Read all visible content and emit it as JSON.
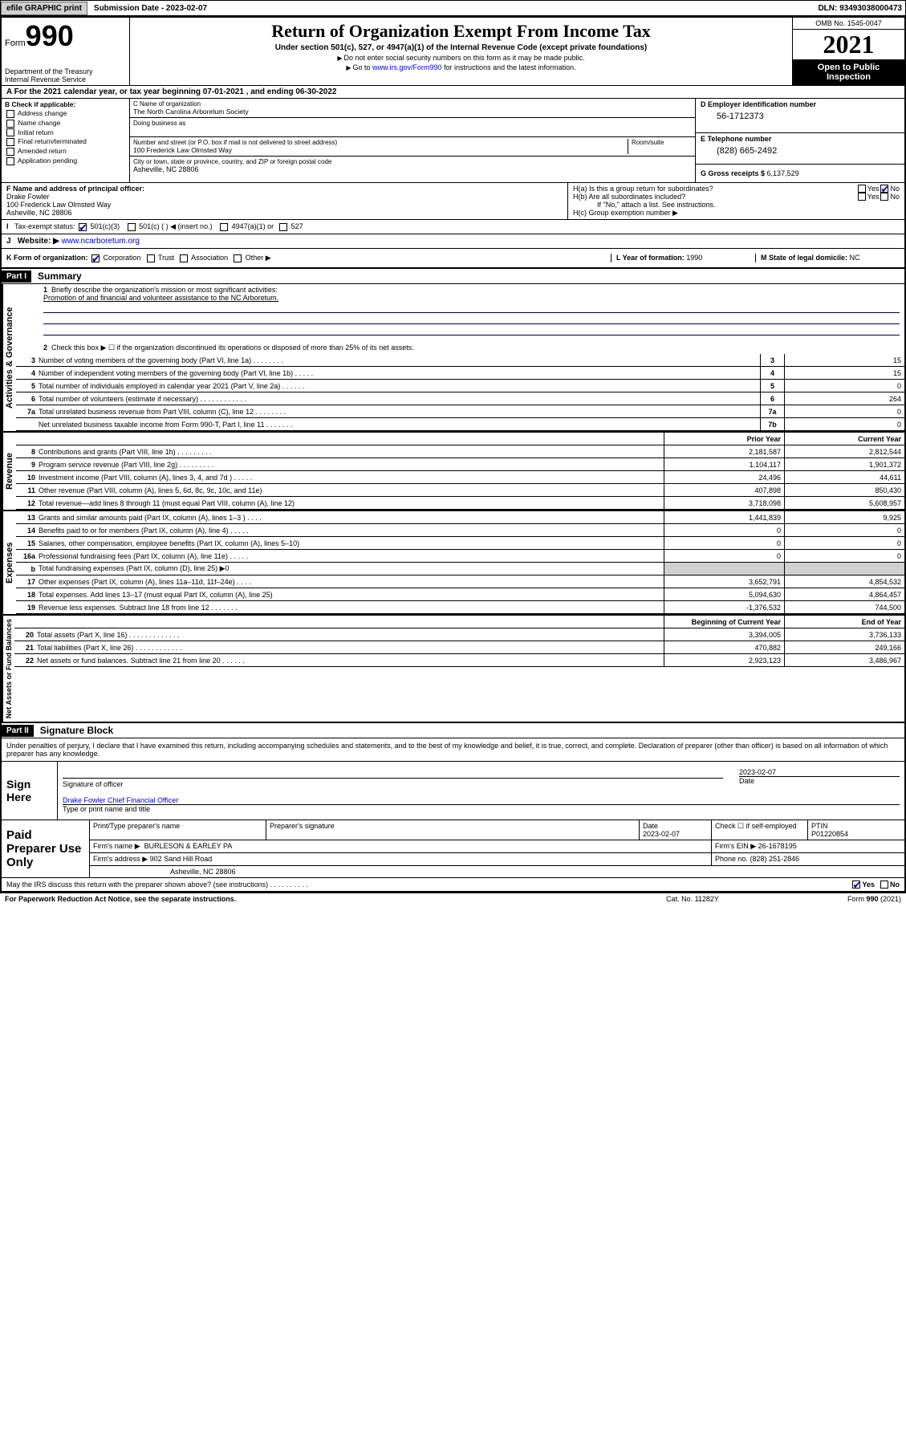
{
  "topbar": {
    "efile": "efile GRAPHIC print",
    "submission_label": "Submission Date - ",
    "submission_date": "2023-02-07",
    "dln_label": "DLN: ",
    "dln": "93493038000473"
  },
  "header": {
    "form_prefix": "Form",
    "form_no": "990",
    "dept": "Department of the Treasury",
    "irs": "Internal Revenue Service",
    "title": "Return of Organization Exempt From Income Tax",
    "subtitle": "Under section 501(c), 527, or 4947(a)(1) of the Internal Revenue Code (except private foundations)",
    "note1": "Do not enter social security numbers on this form as it may be made public.",
    "note2_pre": "Go to ",
    "note2_link": "www.irs.gov/Form990",
    "note2_post": " for instructions and the latest information.",
    "omb": "OMB No. 1545-0047",
    "year": "2021",
    "inspect": "Open to Public Inspection"
  },
  "A": {
    "text": "For the 2021 calendar year, or tax year beginning ",
    "begin": "07-01-2021",
    "mid": " , and ending ",
    "end": "06-30-2022"
  },
  "B": {
    "label": "B Check if applicable:",
    "opts": [
      "Address change",
      "Name change",
      "Initial return",
      "Final return/terminated",
      "Amended return",
      "Application pending"
    ]
  },
  "C": {
    "name_lbl": "C Name of organization",
    "name": "The North Carolina Arboretum Society",
    "dba_lbl": "Doing business as",
    "street_lbl": "Number and street (or P.O. box if mail is not delivered to street address)",
    "room_lbl": "Room/suite",
    "street": "100 Frederick Law Olmsted Way",
    "city_lbl": "City or town, state or province, country, and ZIP or foreign postal code",
    "city": "Asheville, NC  28806"
  },
  "D": {
    "lbl": "D Employer identification number",
    "val": "56-1712373"
  },
  "E": {
    "lbl": "E Telephone number",
    "val": "(828) 665-2492"
  },
  "G": {
    "lbl": "G Gross receipts $ ",
    "val": "6,137,529"
  },
  "F": {
    "lbl": "F Name and address of principal officer:",
    "name": "Drake Fowler",
    "street": "100 Frederick Law Olmsted Way",
    "city": "Asheville, NC  28806"
  },
  "H": {
    "a": "H(a)  Is this a group return for subordinates?",
    "b": "H(b)  Are all subordinates included?",
    "b_note": "If \"No,\" attach a list. See instructions.",
    "c": "H(c)  Group exemption number ▶",
    "yes": "Yes",
    "no": "No"
  },
  "I": {
    "lbl": "Tax-exempt status:",
    "c3": "501(c)(3)",
    "c": "501(c) (  ) ◀ (insert no.)",
    "a1": "4947(a)(1) or",
    "s527": "527"
  },
  "J": {
    "lbl": "Website: ▶",
    "val": "www.ncarboretum.org"
  },
  "K": {
    "lbl": "K Form of organization:",
    "corp": "Corporation",
    "trust": "Trust",
    "assoc": "Association",
    "other": "Other ▶"
  },
  "L": {
    "lbl": "L Year of formation: ",
    "val": "1990"
  },
  "M": {
    "lbl": "M State of legal domicile: ",
    "val": "NC"
  },
  "part1": {
    "tag": "Part I",
    "title": "Summary",
    "l1": "Briefly describe the organization's mission or most significant activities:",
    "mission": "Promotion of and financial and volunteer assistance to the NC Arboretum.",
    "l2": "Check this box ▶ ☐  if the organization discontinued its operations or disposed of more than 25% of its net assets.",
    "vlabels": {
      "gov": "Activities & Governance",
      "rev": "Revenue",
      "exp": "Expenses",
      "net": "Net Assets or Fund Balances"
    },
    "col_prior": "Prior Year",
    "col_current": "Current Year",
    "col_begin": "Beginning of Current Year",
    "col_end": "End of Year",
    "gov_lines": [
      {
        "n": "3",
        "d": "Number of voting members of the governing body (Part VI, line 1a)  .   .   .   .   .   .   .   .",
        "box": "3",
        "v": "15"
      },
      {
        "n": "4",
        "d": "Number of independent voting members of the governing body (Part VI, line 1b)  .   .   .   .   .",
        "box": "4",
        "v": "15"
      },
      {
        "n": "5",
        "d": "Total number of individuals employed in calendar year 2021 (Part V, line 2a)  .   .   .   .   .   .",
        "box": "5",
        "v": "0"
      },
      {
        "n": "6",
        "d": "Total number of volunteers (estimate if necessary)  .   .   .   .   .   .   .   .   .   .   .   .",
        "box": "6",
        "v": "264"
      },
      {
        "n": "7a",
        "d": "Total unrelated business revenue from Part VIII, column (C), line 12  .   .   .   .   .   .   .   .",
        "box": "7a",
        "v": "0"
      },
      {
        "n": "",
        "d": "Net unrelated business taxable income from Form 990-T, Part I, line 11  .   .   .   .   .   .   .",
        "box": "7b",
        "v": "0"
      }
    ],
    "rev_lines": [
      {
        "n": "8",
        "d": "Contributions and grants (Part VIII, line 1h)  .   .   .   .   .   .   .   .   .",
        "p": "2,181,587",
        "c": "2,812,544"
      },
      {
        "n": "9",
        "d": "Program service revenue (Part VIII, line 2g)  .   .   .   .   .   .   .   .   .",
        "p": "1,104,117",
        "c": "1,901,372"
      },
      {
        "n": "10",
        "d": "Investment income (Part VIII, column (A), lines 3, 4, and 7d )  .   .   .   .   .",
        "p": "24,496",
        "c": "44,611"
      },
      {
        "n": "11",
        "d": "Other revenue (Part VIII, column (A), lines 5, 6d, 8c, 9c, 10c, and 11e)",
        "p": "407,898",
        "c": "850,430"
      },
      {
        "n": "12",
        "d": "Total revenue—add lines 8 through 11 (must equal Part VIII, column (A), line 12)",
        "p": "3,718,098",
        "c": "5,608,957"
      }
    ],
    "exp_lines": [
      {
        "n": "13",
        "d": "Grants and similar amounts paid (Part IX, column (A), lines 1–3 )  .   .   .   .",
        "p": "1,441,839",
        "c": "9,925"
      },
      {
        "n": "14",
        "d": "Benefits paid to or for members (Part IX, column (A), line 4)  .   .   .   .   .",
        "p": "0",
        "c": "0"
      },
      {
        "n": "15",
        "d": "Salaries, other compensation, employee benefits (Part IX, column (A), lines 5–10)",
        "p": "0",
        "c": "0"
      },
      {
        "n": "16a",
        "d": "Professional fundraising fees (Part IX, column (A), line 11e)  .   .   .   .   .",
        "p": "0",
        "c": "0"
      },
      {
        "n": "b",
        "d": "Total fundraising expenses (Part IX, column (D), line 25) ▶0",
        "p": "",
        "c": "",
        "shade": true
      },
      {
        "n": "17",
        "d": "Other expenses (Part IX, column (A), lines 11a–11d, 11f–24e)  .   .   .   .",
        "p": "3,652,791",
        "c": "4,854,532"
      },
      {
        "n": "18",
        "d": "Total expenses. Add lines 13–17 (must equal Part IX, column (A), line 25)",
        "p": "5,094,630",
        "c": "4,864,457"
      },
      {
        "n": "19",
        "d": "Revenue less expenses. Subtract line 18 from line 12  .   .   .   .   .   .   .",
        "p": "-1,376,532",
        "c": "744,500"
      }
    ],
    "net_lines": [
      {
        "n": "20",
        "d": "Total assets (Part X, line 16)  .   .   .   .   .   .   .   .   .   .   .   .   .",
        "p": "3,394,005",
        "c": "3,736,133"
      },
      {
        "n": "21",
        "d": "Total liabilities (Part X, line 26)  .   .   .   .   .   .   .   .   .   .   .   .",
        "p": "470,882",
        "c": "249,166"
      },
      {
        "n": "22",
        "d": "Net assets or fund balances. Subtract line 21 from line 20  .   .   .   .   .   .",
        "p": "2,923,123",
        "c": "3,486,967"
      }
    ]
  },
  "part2": {
    "tag": "Part II",
    "title": "Signature Block",
    "decl": "Under penalties of perjury, I declare that I have examined this return, including accompanying schedules and statements, and to the best of my knowledge and belief, it is true, correct, and complete. Declaration of preparer (other than officer) is based on all information of which preparer has any knowledge."
  },
  "sign": {
    "label": "Sign Here",
    "sig_lbl": "Signature of officer",
    "date": "2023-02-07",
    "date_lbl": "Date",
    "name": "Drake Fowler  Chief Financial Officer",
    "name_lbl": "Type or print name and title"
  },
  "paid": {
    "label": "Paid Preparer Use Only",
    "h_name": "Print/Type preparer's name",
    "h_sig": "Preparer's signature",
    "h_date": "Date",
    "date": "2023-02-07",
    "self": "Check ☐ if self-employed",
    "ptin_lbl": "PTIN",
    "ptin": "P01220854",
    "firm_lbl": "Firm's name    ▶",
    "firm": "BURLESON & EARLEY PA",
    "ein_lbl": "Firm's EIN ▶",
    "ein": "26-1678195",
    "addr_lbl": "Firm's address ▶",
    "addr1": "902 Sand Hill Road",
    "addr2": "Asheville, NC  28806",
    "phone_lbl": "Phone no. ",
    "phone": "(828) 251-2846"
  },
  "discuss": {
    "q": "May the IRS discuss this return with the preparer shown above? (see instructions)  .   .   .   .   .   .   .   .   .   .",
    "yes": "Yes",
    "no": "No"
  },
  "footer": {
    "pra": "For Paperwork Reduction Act Notice, see the separate instructions.",
    "cat": "Cat. No. 11282Y",
    "form": "Form 990 (2021)"
  }
}
